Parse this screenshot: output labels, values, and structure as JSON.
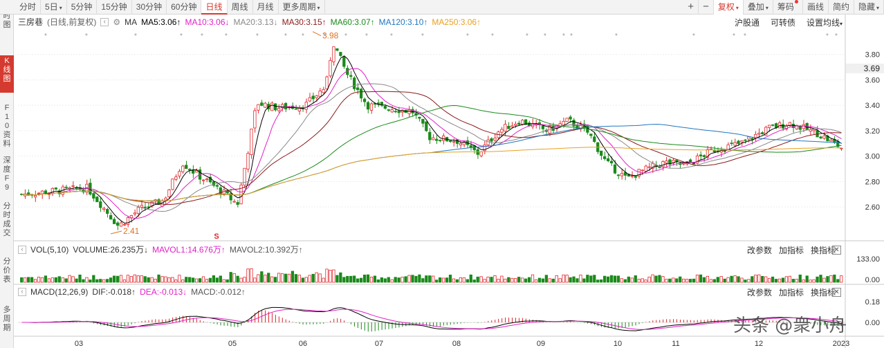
{
  "toolbar": {
    "period_tabs": [
      "分时",
      "5日",
      "5分钟",
      "15分钟",
      "30分钟",
      "60分钟",
      "日线",
      "周线",
      "月线",
      "更多周期"
    ],
    "active_period": "日线",
    "right_buttons": [
      "+",
      "−",
      "复权",
      "叠加",
      "筹码",
      "画线",
      "简约",
      "隐藏"
    ]
  },
  "sidebar": {
    "tabs": [
      "分时图",
      "K线图",
      "F10资料",
      "深度F9",
      "分时成交",
      "分价表",
      "多周期"
    ],
    "active": "K线图"
  },
  "kline": {
    "stock_name": "三房巷",
    "mode": "(日线,前复权)",
    "ma_label": "MA",
    "ma": [
      {
        "label": "MA5:3.06",
        "arrow": "↑",
        "color": "#000000"
      },
      {
        "label": "MA10:3.06",
        "arrow": "↓",
        "color": "#e020c8"
      },
      {
        "label": "MA20:3.13",
        "arrow": "↓",
        "color": "#888888"
      },
      {
        "label": "MA30:3.15",
        "arrow": "↑",
        "color": "#8b1a1a"
      },
      {
        "label": "MA60:3.07",
        "arrow": "↑",
        "color": "#1a8a1a"
      },
      {
        "label": "MA120:3.10",
        "arrow": "↑",
        "color": "#1f77c0"
      },
      {
        "label": "MA250:3.06",
        "arrow": "↑",
        "color": "#e8a020"
      }
    ],
    "links": [
      "沪股通",
      "可转债",
      "设置均线"
    ],
    "y_ticks": [
      "3.80",
      "3.60",
      "3.40",
      "3.20",
      "3.00",
      "2.80",
      "2.60"
    ],
    "current_price": "3.69",
    "high_mark": "3.98",
    "low_mark": "2.41",
    "signal_mark": "S"
  },
  "vol": {
    "label": "VOL(5,10)",
    "volume": "VOLUME:26.235万",
    "volume_arrow": "↓",
    "mavol1": "MAVOL1:14.676万",
    "mavol1_arrow": "↑",
    "mavol2": "MAVOL2:10.392万",
    "mavol2_arrow": "↑",
    "y_ticks": [
      "133.00",
      "0.00"
    ]
  },
  "macd": {
    "label": "MACD(12,26,9)",
    "dif": "DIF:-0.018",
    "dif_arrow": "↑",
    "dea": "DEA:-0.013",
    "dea_arrow": "↓",
    "macd": "MACD:-0.012",
    "macd_arrow": "↑",
    "y_ticks": [
      "0.18",
      "0.00"
    ]
  },
  "panel_links": [
    "改参数",
    "加指标",
    "换指标"
  ],
  "x_axis": [
    "03",
    "05",
    "06",
    "07",
    "08",
    "09",
    "10",
    "11",
    "12",
    "2023"
  ],
  "watermark": "头条 @衆小舟",
  "colors": {
    "up": "#e0252a",
    "down": "#1a8a1a",
    "accent": "#d43a2f"
  }
}
